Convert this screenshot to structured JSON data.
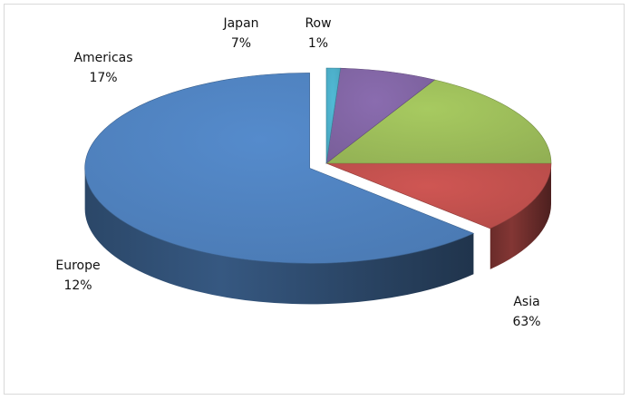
{
  "chart_data": {
    "type": "pie",
    "style": "3d-exploded",
    "slices": [
      {
        "label": "Asia",
        "value": 63,
        "percent_label": "63%",
        "color": "#4f81bd"
      },
      {
        "label": "Europe",
        "value": 12,
        "percent_label": "12%",
        "color": "#c0504d"
      },
      {
        "label": "Americas",
        "value": 17,
        "percent_label": "17%",
        "color": "#9bbb59"
      },
      {
        "label": "Japan",
        "value": 7,
        "percent_label": "7%",
        "color": "#8064a2"
      },
      {
        "label": "Row",
        "value": 1,
        "percent_label": "1%",
        "color": "#4bacc6"
      }
    ],
    "legend": "none",
    "title": ""
  }
}
